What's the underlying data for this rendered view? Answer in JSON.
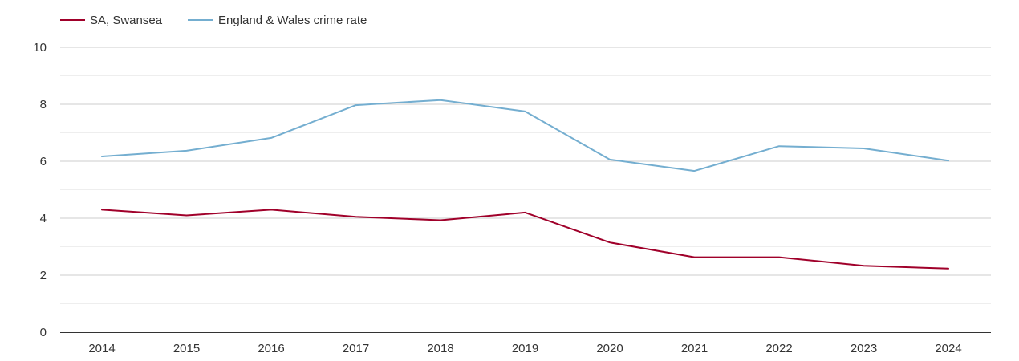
{
  "chart_data": {
    "type": "line",
    "title": "",
    "xlabel": "",
    "ylabel": "",
    "x": [
      "2014",
      "2015",
      "2016",
      "2017",
      "2018",
      "2019",
      "2020",
      "2021",
      "2022",
      "2023",
      "2024"
    ],
    "ylim": [
      0,
      10
    ],
    "yticks": [
      "0",
      "2",
      "4",
      "6",
      "8",
      "10"
    ],
    "minor_gridlines": [
      1,
      3,
      5,
      7,
      9
    ],
    "grid": true,
    "legend_position": "top-left",
    "series": [
      {
        "name": "SA, Swansea",
        "color": "#a0002a",
        "values": [
          4.3,
          4.1,
          4.3,
          4.05,
          3.93,
          4.2,
          3.15,
          2.63,
          2.63,
          2.33,
          2.23
        ]
      },
      {
        "name": "England & Wales crime rate",
        "color": "#74aed0",
        "values": [
          6.17,
          6.37,
          6.82,
          7.97,
          8.15,
          7.75,
          6.06,
          5.66,
          6.53,
          6.45,
          6.02
        ]
      }
    ]
  }
}
